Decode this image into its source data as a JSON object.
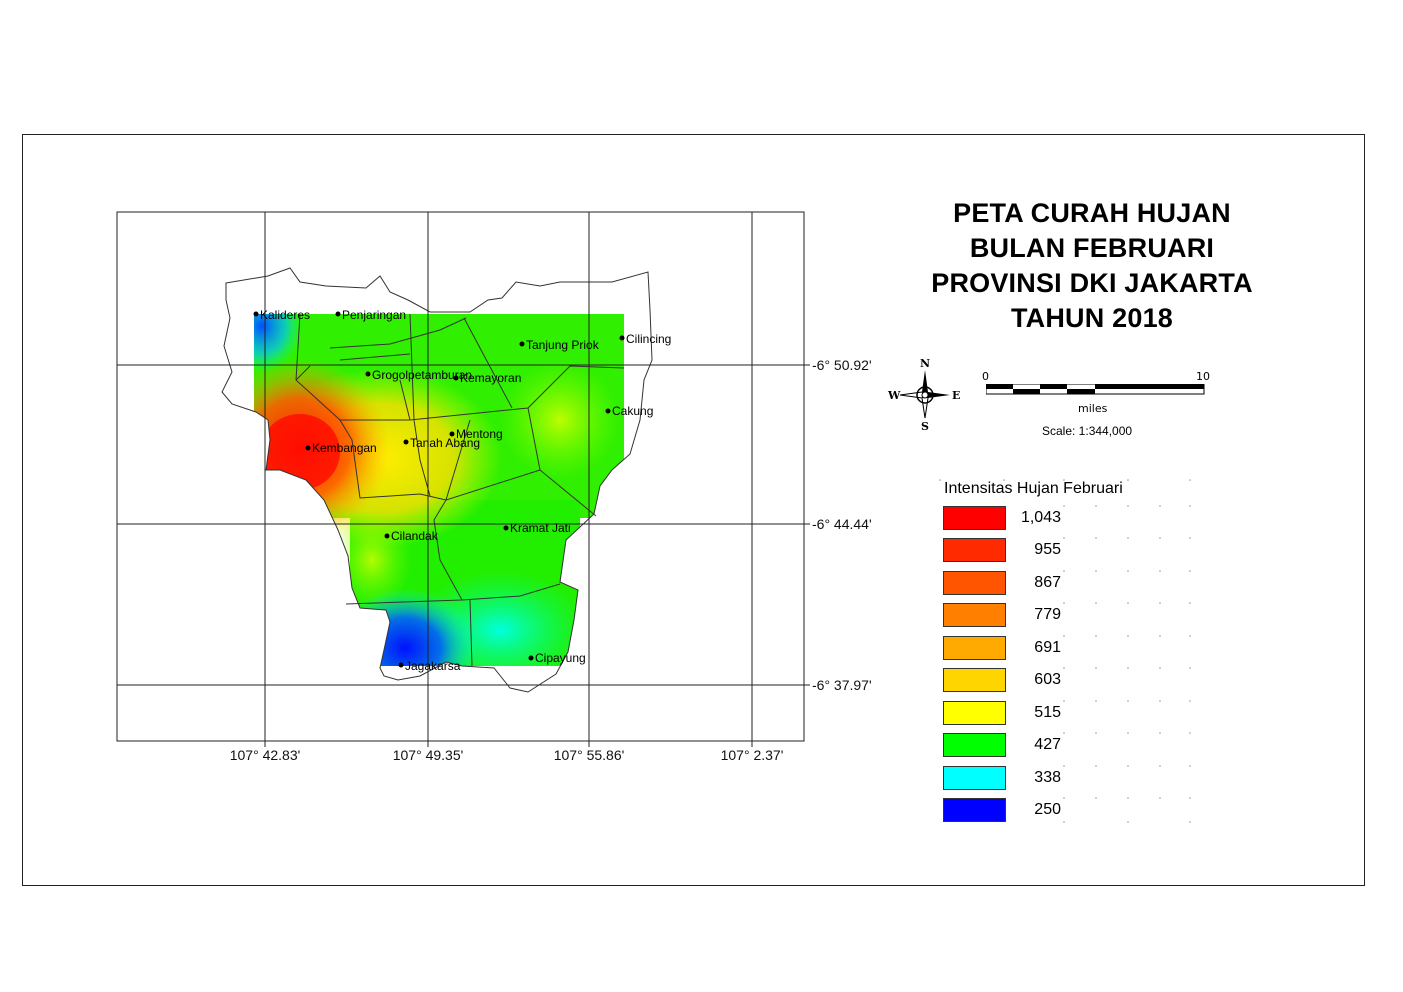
{
  "map": {
    "title_lines": [
      "PETA CURAH HUJAN",
      "BULAN FEBRUARI",
      "PROVINSI DKI JAKARTA",
      "TAHUN 2018"
    ],
    "grid": {
      "longitude_labels": [
        "107° 42.83'",
        "107° 49.35'",
        "107° 55.86'",
        "107° 2.37'"
      ],
      "latitude_labels": [
        "-6° 50.92'",
        "-6° 44.44'",
        "-6° 37.97'"
      ]
    },
    "places": [
      {
        "name": "Kalideres"
      },
      {
        "name": "Penjaringan"
      },
      {
        "name": "Tanjung Priok"
      },
      {
        "name": "Cilincing"
      },
      {
        "name": "Grogolpetamburan"
      },
      {
        "name": "Kemayoran"
      },
      {
        "name": "Cakung"
      },
      {
        "name": "Kembangan"
      },
      {
        "name": "Mentong"
      },
      {
        "name": "Tanah Abang"
      },
      {
        "name": "Cilandak"
      },
      {
        "name": "Kramat Jati"
      },
      {
        "name": "Jagakarsa"
      },
      {
        "name": "Cipayung"
      }
    ]
  },
  "north_arrow": {
    "n": "N",
    "s": "S",
    "e": "E",
    "w": "W"
  },
  "scale": {
    "start": "0",
    "end": "10",
    "unit": "miles",
    "text": "Scale: 1:344,000"
  },
  "legend": {
    "title": "Intensitas Hujan Februari",
    "items": [
      {
        "value": "1,043",
        "color": "#ff0000"
      },
      {
        "value": "955",
        "color": "#ff2a00"
      },
      {
        "value": "867",
        "color": "#ff5500"
      },
      {
        "value": "779",
        "color": "#ff8000"
      },
      {
        "value": "691",
        "color": "#ffaa00"
      },
      {
        "value": "603",
        "color": "#ffd500"
      },
      {
        "value": "515",
        "color": "#ffff00"
      },
      {
        "value": "427",
        "color": "#00ff00"
      },
      {
        "value": "338",
        "color": "#00ffff"
      },
      {
        "value": "250",
        "color": "#0000ff"
      }
    ]
  }
}
